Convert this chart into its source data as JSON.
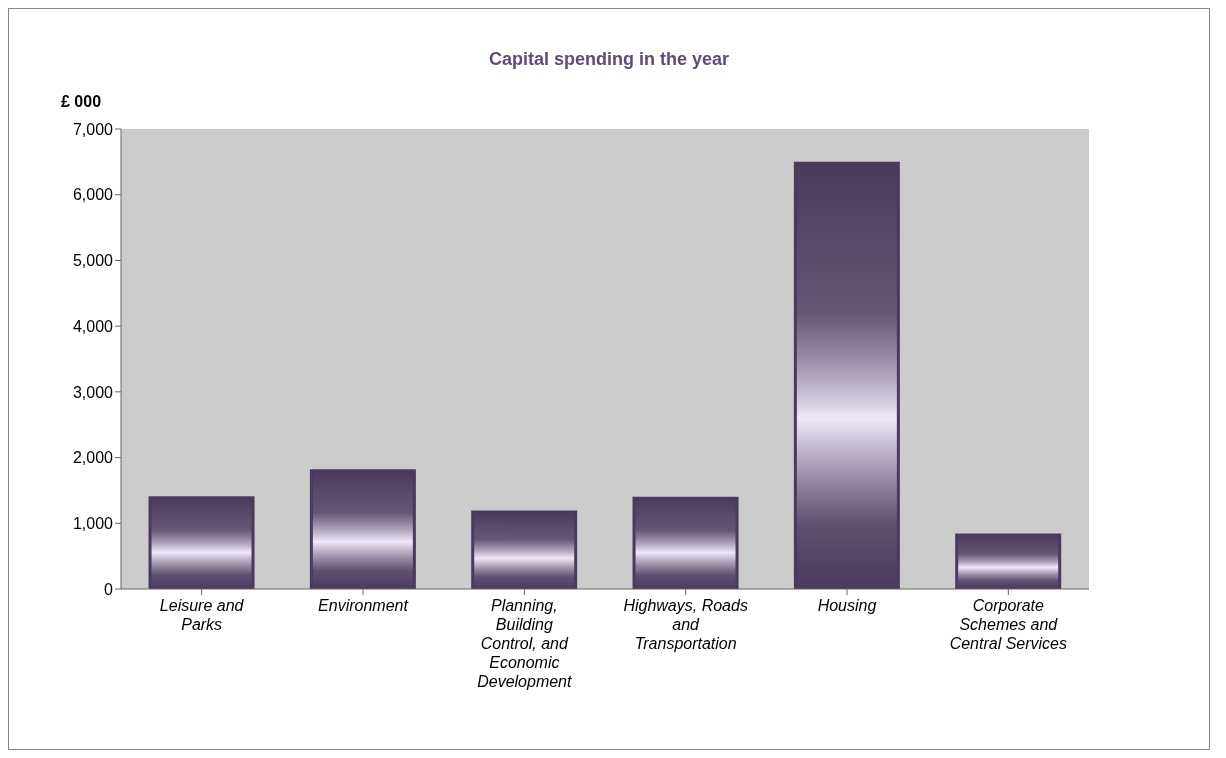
{
  "chart_data": {
    "type": "bar",
    "title": "Capital spending in the year",
    "ylabel": "£ 000",
    "categories": [
      "Leisure and Parks",
      "Environment",
      "Planning, Building Control, and Economic Development",
      "Highways, Roads and Transportation",
      "Housing",
      "Corporate Schemes and Central Services"
    ],
    "values": [
      1390,
      1800,
      1170,
      1380,
      6480,
      820
    ],
    "color": "#4a3a5e",
    "ylim": [
      0,
      7000
    ],
    "yticks": [
      0,
      {
        "value": 1000,
        "label": "1,000"
      },
      {
        "value": 2000,
        "label": "2,000"
      },
      {
        "value": 3000,
        "label": "3,000"
      },
      {
        "value": 4000,
        "label": "4,000"
      },
      {
        "value": 5000,
        "label": "5,000"
      },
      {
        "value": 6000,
        "label": "6,000"
      },
      {
        "value": 7000,
        "label": "7,000"
      }
    ],
    "grid": false,
    "legend": false
  }
}
